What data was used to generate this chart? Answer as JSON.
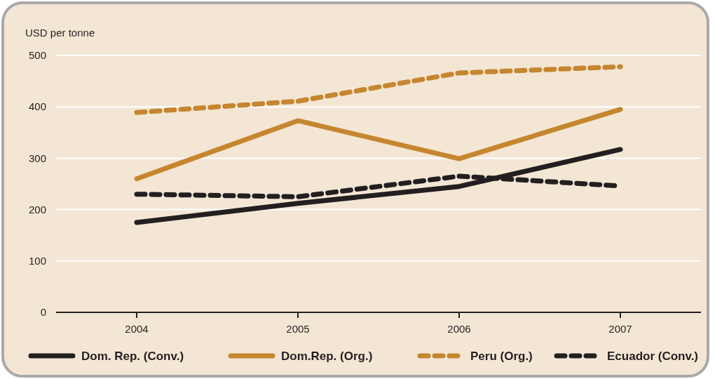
{
  "chart_data": {
    "type": "line",
    "ylabel": "USD per tonne",
    "categories": [
      "2004",
      "2005",
      "2006",
      "2007"
    ],
    "series": [
      {
        "name": "Dom. Rep. (Conv.)",
        "color": "#231f20",
        "line_style": "solid",
        "values": [
          175,
          212,
          245,
          317
        ]
      },
      {
        "name": "Dom.Rep. (Org.)",
        "color": "#c68630",
        "line_style": "solid",
        "values": [
          260,
          373,
          299,
          395
        ]
      },
      {
        "name": "Peru (Org.)",
        "color": "#c68630",
        "line_style": "dashed",
        "values": [
          389,
          411,
          466,
          478
        ]
      },
      {
        "name": "Ecuador (Conv.)",
        "color": "#231f20",
        "line_style": "dashed",
        "values": [
          230,
          225,
          265,
          246
        ]
      }
    ],
    "ylim": [
      0,
      500
    ],
    "yticks": [
      0,
      100,
      200,
      300,
      400,
      500
    ],
    "grid": "y",
    "legend": "bottom",
    "marker": "none"
  }
}
